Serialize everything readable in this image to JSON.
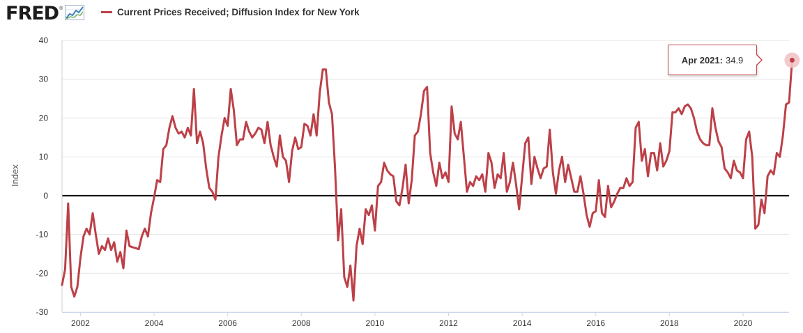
{
  "header": {
    "logo_text": "FRED",
    "logo_mark": "®",
    "logo_icon": "chart-trend-icon",
    "legend_label": "Current Prices Received; Diffusion Index for New York"
  },
  "colors": {
    "series": "#bd4048",
    "zero_line": "#000000",
    "grid": "#e6e6e6",
    "tooltip_border": "#c4434b",
    "marker_halo": "#f2c4c6"
  },
  "tooltip": {
    "date": "Apr 2021:",
    "value": "34.9"
  },
  "chart_data": {
    "type": "line",
    "title": "",
    "ylabel": "Index",
    "xlabel": "",
    "ylim": [
      -30,
      40
    ],
    "yticks": [
      40,
      30,
      20,
      10,
      0,
      -10,
      -20,
      -30
    ],
    "xticks": [
      "2002",
      "2004",
      "2006",
      "2008",
      "2010",
      "2012",
      "2014",
      "2016",
      "2018",
      "2020"
    ],
    "xlim": [
      "2001-07",
      "2021-04"
    ],
    "grid": "horizontal",
    "reference_line": 0,
    "series": [
      {
        "name": "Current Prices Received; Diffusion Index for New York",
        "x_start": "2001-07",
        "frequency": "monthly",
        "values": [
          -23.0,
          -19.0,
          -2.0,
          -23.5,
          -26.0,
          -23.5,
          -16.0,
          -10.5,
          -8.5,
          -10.0,
          -4.5,
          -10.0,
          -15.0,
          -13.0,
          -14.0,
          -11.0,
          -14.0,
          -12.0,
          -17.0,
          -14.5,
          -18.7,
          -9.0,
          -13.0,
          -13.3,
          -13.5,
          -13.8,
          -10.5,
          -8.5,
          -10.5,
          -4.5,
          -0.5,
          4.0,
          3.5,
          12.0,
          13.0,
          17.5,
          20.5,
          17.5,
          16.0,
          16.5,
          15.0,
          17.5,
          15.5,
          27.5,
          13.5,
          16.5,
          13.5,
          7.0,
          2.0,
          1.0,
          -1.0,
          10.0,
          15.5,
          20.0,
          18.0,
          27.5,
          22.0,
          13.0,
          14.5,
          14.5,
          19.0,
          16.5,
          15.0,
          16.0,
          17.5,
          17.0,
          13.5,
          19.0,
          13.0,
          10.0,
          7.5,
          15.5,
          10.0,
          9.0,
          3.5,
          11.5,
          15.0,
          12.0,
          12.5,
          18.5,
          18.0,
          15.5,
          21.0,
          15.5,
          26.5,
          32.5,
          32.5,
          24.0,
          21.0,
          7.0,
          -11.5,
          -3.5,
          -21.0,
          -23.5,
          -18.0,
          -27.0,
          -13.0,
          -8.5,
          -12.5,
          -3.5,
          -5.0,
          -2.5,
          -9.0,
          2.5,
          3.5,
          8.5,
          6.5,
          5.5,
          5.0,
          -1.5,
          -2.5,
          2.0,
          8.0,
          -2.0,
          4.0,
          15.5,
          16.5,
          21.0,
          27.0,
          28.0,
          11.0,
          6.0,
          2.5,
          8.5,
          4.5,
          6.0,
          3.5,
          23.0,
          16.0,
          14.5,
          19.0,
          10.0,
          1.0,
          3.5,
          2.5,
          5.0,
          4.0,
          5.5,
          1.0,
          11.0,
          8.5,
          2.0,
          5.5,
          4.5,
          11.0,
          1.0,
          3.5,
          8.5,
          3.0,
          -3.5,
          5.0,
          13.5,
          15.0,
          3.0,
          10.0,
          7.0,
          4.5,
          7.0,
          7.5,
          17.0,
          6.0,
          0.5,
          6.5,
          10.0,
          3.5,
          8.0,
          4.5,
          1.0,
          1.0,
          5.0,
          0.5,
          -5.0,
          -8.0,
          -4.5,
          -4.0,
          4.0,
          -4.5,
          -5.5,
          2.5,
          -3.0,
          -1.5,
          0.5,
          2.0,
          2.0,
          4.5,
          2.5,
          3.5,
          17.5,
          19.0,
          9.0,
          12.0,
          5.0,
          11.0,
          11.0,
          6.5,
          13.5,
          7.5,
          9.0,
          11.5,
          21.5,
          21.5,
          22.5,
          21.0,
          23.0,
          23.5,
          22.5,
          20.0,
          16.5,
          14.5,
          13.5,
          13.0,
          13.0,
          22.5,
          17.5,
          14.0,
          12.5,
          7.0,
          6.0,
          4.5,
          9.0,
          6.5,
          6.0,
          4.5,
          14.5,
          16.5,
          10.0,
          -8.5,
          -7.5,
          -1.0,
          -4.5,
          5.0,
          6.5,
          5.5,
          11.0,
          10.0,
          15.5,
          23.5,
          24.0,
          34.9
        ]
      }
    ]
  }
}
